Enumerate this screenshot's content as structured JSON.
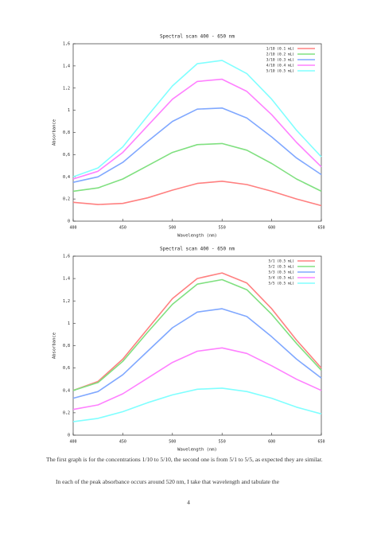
{
  "chart_data": [
    {
      "type": "line",
      "title": "Spectral scan 400 - 650 nm",
      "x_label": "Wavelength (nm)",
      "y_label": "Absorbance",
      "x": [
        400,
        425,
        450,
        475,
        500,
        525,
        550,
        575,
        600,
        625,
        650
      ],
      "xlim": [
        400,
        650
      ],
      "xticks": [
        400,
        450,
        500,
        550,
        600,
        650
      ],
      "ylim": [
        0,
        1.6
      ],
      "yticks": [
        0,
        {
          "value": 0.2,
          "label": "0,2"
        },
        {
          "value": 0.4,
          "label": "0,4"
        },
        {
          "value": 0.6,
          "label": "0,6"
        },
        {
          "value": 0.8,
          "label": "0,8"
        },
        1,
        {
          "value": 1.2,
          "label": "1,2"
        },
        {
          "value": 1.4,
          "label": "1,4"
        },
        {
          "value": 1.6,
          "label": "1,6"
        }
      ],
      "series": [
        {
          "name": "1/10 (0.1 mL)",
          "color": "#ff8080",
          "values": [
            0.17,
            0.15,
            0.16,
            0.21,
            0.28,
            0.34,
            0.36,
            0.33,
            0.27,
            0.2,
            0.14
          ]
        },
        {
          "name": "2/10 (0.2 mL)",
          "color": "#80e080",
          "values": [
            0.27,
            0.3,
            0.38,
            0.5,
            0.62,
            0.69,
            0.7,
            0.64,
            0.52,
            0.38,
            0.27
          ]
        },
        {
          "name": "3/10 (0.3 mL)",
          "color": "#80a8ff",
          "values": [
            0.35,
            0.4,
            0.53,
            0.72,
            0.9,
            1.01,
            1.02,
            0.93,
            0.76,
            0.57,
            0.42
          ]
        },
        {
          "name": "4/10 (0.4 mL)",
          "color": "#ff80ff",
          "values": [
            0.38,
            0.45,
            0.62,
            0.86,
            1.1,
            1.26,
            1.28,
            1.17,
            0.96,
            0.71,
            0.49
          ]
        },
        {
          "name": "5/10 (0.5 mL)",
          "color": "#80ffff",
          "values": [
            0.4,
            0.48,
            0.67,
            0.95,
            1.22,
            1.42,
            1.45,
            1.33,
            1.1,
            0.82,
            0.58
          ]
        }
      ]
    },
    {
      "type": "line",
      "title": "Spectral scan 400 - 650 nm",
      "x_label": "Wavelength (nm)",
      "y_label": "Absorbance",
      "x": [
        400,
        425,
        450,
        475,
        500,
        525,
        550,
        575,
        600,
        625,
        650
      ],
      "xlim": [
        400,
        650
      ],
      "xticks": [
        400,
        450,
        500,
        550,
        600,
        650
      ],
      "ylim": [
        0,
        1.6
      ],
      "yticks": [
        0,
        {
          "value": 0.2,
          "label": "0,2"
        },
        {
          "value": 0.4,
          "label": "0,4"
        },
        {
          "value": 0.6,
          "label": "0,6"
        },
        {
          "value": 0.8,
          "label": "0,8"
        },
        1,
        {
          "value": 1.2,
          "label": "1,2"
        },
        {
          "value": 1.4,
          "label": "1,4"
        },
        {
          "value": 1.6,
          "label": "1,6"
        }
      ],
      "series": [
        {
          "name": "5/1 (0.5 mL)",
          "color": "#ff8080",
          "values": [
            0.4,
            0.48,
            0.68,
            0.95,
            1.22,
            1.4,
            1.45,
            1.36,
            1.13,
            0.85,
            0.6
          ]
        },
        {
          "name": "5/2 (0.5 mL)",
          "color": "#80e080",
          "values": [
            0.4,
            0.47,
            0.66,
            0.92,
            1.17,
            1.35,
            1.39,
            1.3,
            1.08,
            0.82,
            0.58
          ]
        },
        {
          "name": "5/3 (0.5 mL)",
          "color": "#80a8ff",
          "values": [
            0.33,
            0.39,
            0.54,
            0.75,
            0.96,
            1.1,
            1.13,
            1.06,
            0.88,
            0.68,
            0.51
          ]
        },
        {
          "name": "5/4 (0.5 mL)",
          "color": "#ff80ff",
          "values": [
            0.23,
            0.27,
            0.37,
            0.51,
            0.65,
            0.75,
            0.78,
            0.73,
            0.62,
            0.5,
            0.4
          ]
        },
        {
          "name": "5/5 (0.5 mL)",
          "color": "#80ffff",
          "values": [
            0.12,
            0.15,
            0.21,
            0.29,
            0.36,
            0.41,
            0.42,
            0.39,
            0.33,
            0.25,
            0.19
          ]
        }
      ]
    }
  ],
  "paragraphs": [
    "The first graph is for the concentrations 1/10 to 5/10, the second one is from 5/1 to 5/5, as expected they are similar.",
    "In each of the peak absorbance occurs around 520 nm, I take that wavelength and tabulate the"
  ],
  "page_number": "4"
}
